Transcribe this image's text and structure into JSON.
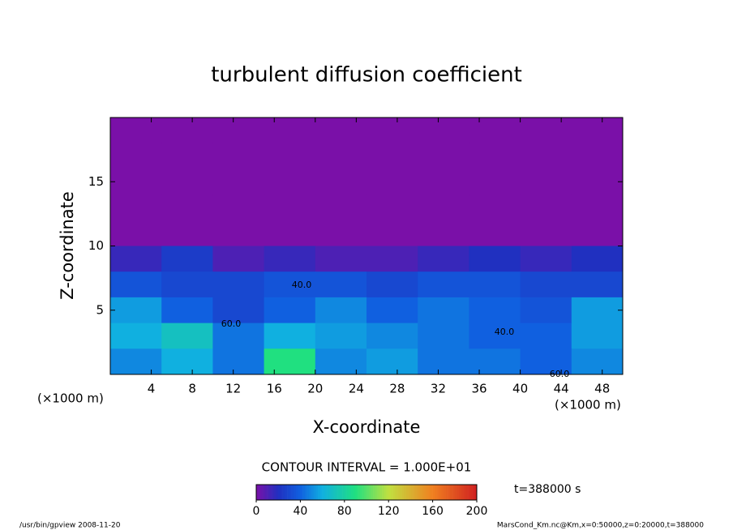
{
  "chart_data": {
    "type": "contour",
    "title": "turbulent diffusion coefficient",
    "x_label": "X-coordinate",
    "y_label": "Z-coordinate",
    "x_unit": "(×1000 m)",
    "y_unit": "(×1000 m)",
    "contour_interval": "CONTOUR INTERVAL = 1.000E+01",
    "time_label": "t=388000 s",
    "footer_left": "/usr/bin/gpview   2008-11-20",
    "footer_right": "MarsCond_Km.nc@Km,x=0:50000,z=0:20000,t=388000",
    "xlim": [
      0,
      50
    ],
    "ylim": [
      0,
      20
    ],
    "xticks": [
      4,
      8,
      12,
      16,
      20,
      24,
      28,
      32,
      36,
      40,
      44,
      48
    ],
    "yticks": [
      5,
      10,
      15
    ],
    "x": [
      2.5,
      7.5,
      12.5,
      17.5,
      22.5,
      27.5,
      32.5,
      37.5,
      42.5,
      47.5
    ],
    "y": [
      19,
      17,
      15,
      13,
      11,
      9,
      7,
      5,
      3,
      1
    ],
    "values": [
      [
        0,
        0,
        0,
        0,
        0,
        0,
        0,
        0,
        0,
        0
      ],
      [
        0,
        0,
        0,
        0,
        0,
        0,
        0,
        0,
        0,
        0
      ],
      [
        0,
        0,
        0,
        0,
        0,
        0,
        0,
        0,
        0,
        0
      ],
      [
        0,
        0,
        0,
        0,
        0,
        0,
        0,
        0,
        0,
        0
      ],
      [
        0,
        0,
        0,
        0,
        0,
        0,
        0,
        0,
        0,
        0
      ],
      [
        15,
        25,
        10,
        15,
        10,
        10,
        15,
        20,
        15,
        20
      ],
      [
        35,
        30,
        30,
        35,
        35,
        30,
        35,
        35,
        30,
        30
      ],
      [
        55,
        40,
        30,
        40,
        50,
        40,
        45,
        40,
        35,
        55
      ],
      [
        60,
        70,
        45,
        60,
        55,
        50,
        45,
        40,
        40,
        55
      ],
      [
        50,
        60,
        45,
        90,
        50,
        55,
        45,
        45,
        40,
        50
      ]
    ],
    "annotations": [
      "60.0",
      "40.0",
      "40.0",
      "60.0"
    ],
    "clim": [
      0,
      200
    ],
    "cticks": [
      0,
      40,
      80,
      120,
      160,
      200
    ]
  }
}
